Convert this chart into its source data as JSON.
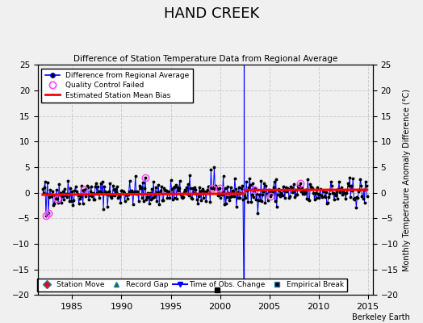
{
  "title": "HAND CREEK",
  "subtitle": "Difference of Station Temperature Data from Regional Average",
  "ylabel_right": "Monthly Temperature Anomaly Difference (°C)",
  "xlim": [
    1981.5,
    2015.5
  ],
  "ylim": [
    -20,
    25
  ],
  "yticks": [
    -20,
    -15,
    -10,
    -5,
    0,
    5,
    10,
    15,
    20,
    25
  ],
  "xticks": [
    1985,
    1990,
    1995,
    2000,
    2005,
    2010,
    2015
  ],
  "fig_bg_color": "#f0f0f0",
  "plot_bg_color": "#f0f0f0",
  "grid_color": "#cccccc",
  "bias_line_color": "#ff0000",
  "data_line_color": "#0000ff",
  "data_marker_color": "#000000",
  "qc_edge_color": "#ff44ff",
  "empirical_break_x": 1999.67,
  "empirical_break_y": -19.0,
  "time_obs_change_x": 2002.42,
  "time_obs_spike_y": -18.0,
  "bias_breakpoint": 2002.42,
  "bias_y_early": -0.4,
  "bias_y_late": 0.5,
  "watermark": "Berkeley Earth",
  "legend1_items": [
    "Difference from Regional Average",
    "Quality Control Failed",
    "Estimated Station Mean Bias"
  ],
  "legend2_items": [
    "Station Move",
    "Record Gap",
    "Time of Obs. Change",
    "Empirical Break"
  ],
  "qc_years": [
    1982.3,
    1982.6,
    1983.5,
    1986.2,
    1992.4,
    1999.25,
    1999.9,
    2003.5,
    2005.1,
    2008.2
  ],
  "seed": 42
}
